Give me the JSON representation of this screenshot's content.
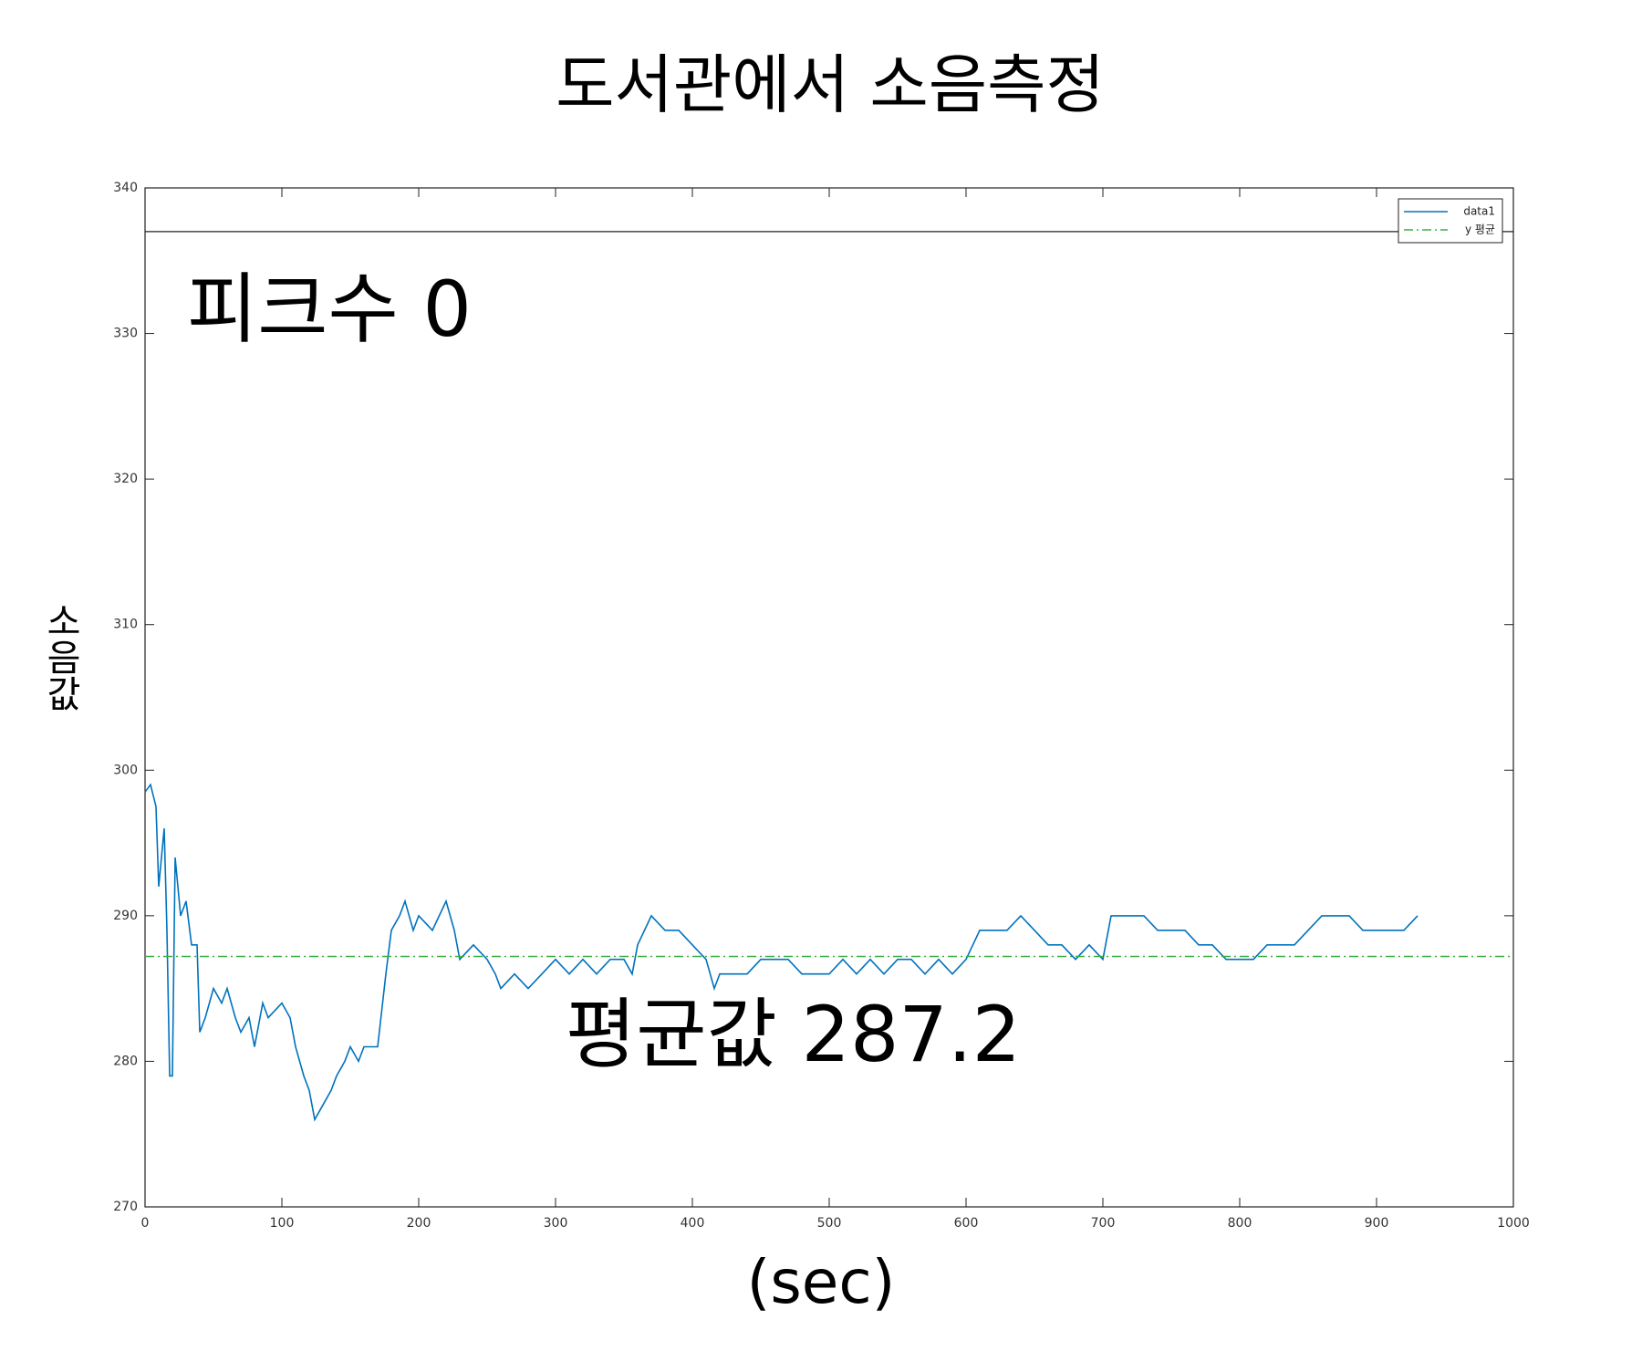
{
  "chart_data": {
    "type": "line",
    "title": "도서관에서 소음측정",
    "x_label": "(sec)",
    "y_label": "소음값",
    "annotations": [
      "피크수 0",
      "평균값 287.2"
    ],
    "xlim": [
      0,
      1000
    ],
    "xticks": [
      0,
      100,
      200,
      300,
      400,
      500,
      600,
      700,
      800,
      900,
      1000
    ],
    "ylim": [
      270,
      340
    ],
    "yticks": [
      270,
      280,
      290,
      300,
      310,
      320,
      330,
      340
    ],
    "legend": "upper right",
    "reference_lines": [
      337
    ],
    "series": [
      {
        "name": "data1",
        "color": "#0072bd",
        "style": "solid",
        "x": [
          0,
          4,
          8,
          10,
          14,
          16,
          18,
          20,
          22,
          26,
          30,
          34,
          38,
          40,
          44,
          50,
          56,
          60,
          66,
          70,
          76,
          80,
          86,
          90,
          100,
          106,
          110,
          116,
          120,
          124,
          130,
          136,
          140,
          146,
          150,
          156,
          160,
          166,
          170,
          176,
          180,
          186,
          190,
          196,
          200,
          210,
          220,
          226,
          230,
          240,
          250,
          256,
          260,
          270,
          280,
          290,
          300,
          310,
          320,
          330,
          340,
          350,
          356,
          360,
          370,
          380,
          390,
          400,
          410,
          416,
          420,
          430,
          440,
          450,
          460,
          470,
          480,
          490,
          500,
          510,
          520,
          530,
          540,
          550,
          560,
          570,
          580,
          590,
          600,
          610,
          620,
          630,
          640,
          650,
          660,
          670,
          680,
          690,
          700,
          706,
          720,
          730,
          740,
          750,
          760,
          770,
          780,
          790,
          800,
          810,
          820,
          830,
          840,
          850,
          860,
          870,
          880,
          890,
          900,
          910,
          920,
          930
        ],
        "values": [
          298.5,
          299,
          297.5,
          292,
          296,
          289,
          279,
          279,
          294,
          290,
          291,
          288,
          288,
          282,
          283,
          285,
          284,
          285,
          283,
          282,
          283,
          281,
          284,
          283,
          284,
          283,
          281,
          279,
          278,
          276,
          277,
          278,
          279,
          280,
          281,
          280,
          281,
          281,
          281,
          286,
          289,
          290,
          291,
          289,
          290,
          289,
          291,
          289,
          287,
          288,
          287,
          286,
          285,
          286,
          285,
          286,
          287,
          286,
          287,
          286,
          287,
          287,
          286,
          288,
          290,
          289,
          289,
          288,
          287,
          285,
          286,
          286,
          286,
          287,
          287,
          287,
          286,
          286,
          286,
          287,
          286,
          287,
          286,
          287,
          287,
          286,
          287,
          286,
          287,
          289,
          289,
          289,
          290,
          289,
          288,
          288,
          287,
          288,
          287,
          290,
          290,
          290,
          289,
          289,
          289,
          288,
          288,
          287,
          287,
          287,
          288,
          288,
          288,
          289,
          290,
          290,
          290,
          289,
          289,
          289,
          289,
          290
        ]
      },
      {
        "name": "y 평균",
        "color": "#3cb043",
        "style": "dashdot",
        "x": [
          0,
          1000
        ],
        "values": [
          287.2,
          287.2
        ]
      }
    ]
  }
}
